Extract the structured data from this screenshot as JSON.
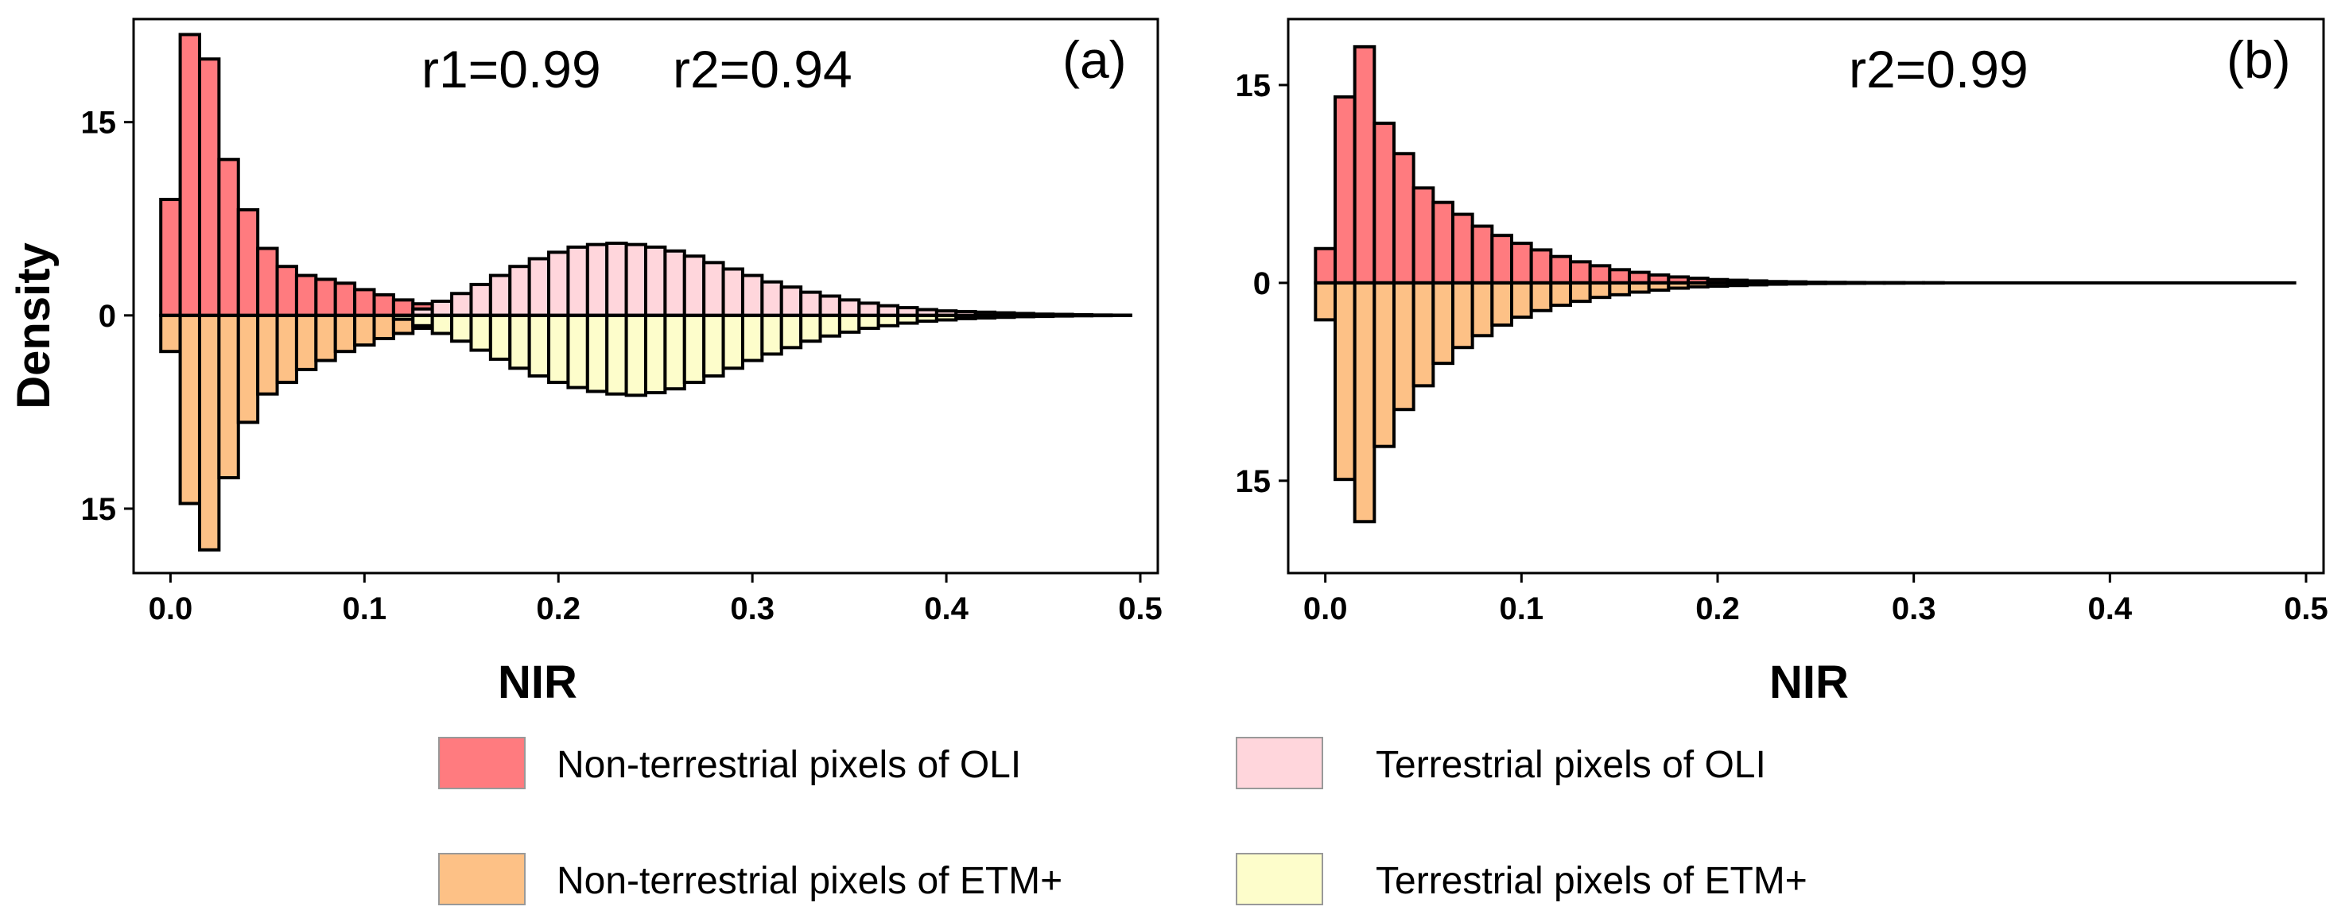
{
  "figure": {
    "ylabel": "Density",
    "legend": [
      {
        "label": "Non-terrestrial pixels of OLI",
        "color": "#ff7b7f"
      },
      {
        "label": "Terrestrial pixels of OLI",
        "color": "#ffd6dc"
      },
      {
        "label": "Non-terrestrial pixels of ETM+",
        "color": "#fdc186"
      },
      {
        "label": "Terrestrial pixels of ETM+",
        "color": "#fdfdcb"
      }
    ]
  },
  "chart_data": [
    {
      "type": "mirrored-histogram",
      "panel_label": "(a)",
      "annotation_r1": "r1=0.99",
      "annotation_r2": "r2=0.94",
      "xlabel": "NIR",
      "xlim": [
        -0.01,
        0.5
      ],
      "ylim": [
        -20,
        23
      ],
      "x_ticks": [
        "0.0",
        "0.1",
        "0.2",
        "0.3",
        "0.4",
        "0.5"
      ],
      "y_ticks": [
        {
          "value": 15,
          "label": "15"
        },
        {
          "value": 0,
          "label": "0"
        },
        {
          "value": -15,
          "label": "15"
        }
      ],
      "bin_width": 0.01,
      "bin_start": -0.005,
      "series": [
        {
          "name": "Non-terrestrial pixels of OLI",
          "color": "#ff7b7f",
          "direction": "up",
          "values": [
            9,
            21.8,
            19.9,
            12.1,
            8.2,
            5.2,
            3.8,
            3.1,
            2.8,
            2.5,
            2.0,
            1.6,
            1.2,
            0.9,
            0.7,
            0.5,
            0.4,
            0.3,
            0.25,
            0.2,
            0.2,
            0.15,
            0.1,
            0.1,
            0.1,
            0.05,
            0.05,
            0.05,
            0,
            0,
            0,
            0,
            0,
            0,
            0,
            0,
            0,
            0,
            0,
            0,
            0,
            0,
            0,
            0,
            0,
            0,
            0,
            0,
            0,
            0
          ]
        },
        {
          "name": "Terrestrial pixels of OLI",
          "color": "#ffd6dc",
          "direction": "up",
          "values": [
            0,
            0,
            0,
            0,
            0,
            0,
            0,
            0,
            0,
            0,
            0,
            0,
            0,
            0.5,
            1.1,
            1.7,
            2.4,
            3.1,
            3.8,
            4.4,
            4.9,
            5.3,
            5.5,
            5.6,
            5.5,
            5.3,
            5.0,
            4.6,
            4.1,
            3.6,
            3.1,
            2.6,
            2.2,
            1.8,
            1.5,
            1.2,
            0.95,
            0.75,
            0.6,
            0.45,
            0.35,
            0.3,
            0.25,
            0.2,
            0.15,
            0.1,
            0.08,
            0.05,
            0.03,
            0.02
          ]
        },
        {
          "name": "Non-terrestrial pixels of ETM+",
          "color": "#fdc186",
          "direction": "down",
          "values": [
            2.8,
            14.6,
            18.2,
            12.6,
            8.3,
            6.1,
            5.2,
            4.2,
            3.5,
            2.8,
            2.3,
            1.8,
            1.4,
            1.0,
            0.8,
            0.6,
            0.5,
            0.4,
            0.3,
            0.25,
            0.2,
            0.15,
            0.1,
            0.1,
            0.1,
            0.05,
            0.05,
            0,
            0,
            0,
            0,
            0,
            0,
            0,
            0,
            0,
            0,
            0,
            0,
            0,
            0,
            0,
            0,
            0,
            0,
            0,
            0,
            0,
            0,
            0
          ]
        },
        {
          "name": "Terrestrial pixels of ETM+",
          "color": "#fdfdcb",
          "direction": "down",
          "values": [
            0,
            0,
            0,
            0,
            0,
            0,
            0,
            0,
            0,
            0,
            0,
            0,
            0.3,
            0.8,
            1.4,
            2.0,
            2.7,
            3.4,
            4.1,
            4.7,
            5.2,
            5.6,
            5.9,
            6.1,
            6.2,
            6.0,
            5.7,
            5.2,
            4.7,
            4.1,
            3.5,
            3.0,
            2.5,
            2.0,
            1.6,
            1.3,
            1.0,
            0.8,
            0.6,
            0.45,
            0.35,
            0.25,
            0.2,
            0.15,
            0.1,
            0.08,
            0.05,
            0.03,
            0.02,
            0.01
          ]
        }
      ]
    },
    {
      "type": "mirrored-histogram",
      "panel_label": "(b)",
      "annotation_r2": "r2=0.99",
      "xlabel": "NIR",
      "xlim": [
        -0.01,
        0.5
      ],
      "ylim": [
        -22,
        20
      ],
      "x_ticks": [
        "0.0",
        "0.1",
        "0.2",
        "0.3",
        "0.4",
        "0.5"
      ],
      "y_ticks": [
        {
          "value": 15,
          "label": "15"
        },
        {
          "value": 0,
          "label": "0"
        },
        {
          "value": -15,
          "label": "15"
        }
      ],
      "bin_width": 0.01,
      "bin_start": -0.005,
      "series": [
        {
          "name": "Non-terrestrial pixels of OLI",
          "color": "#ff7b7f",
          "direction": "up",
          "values": [
            2.6,
            14.1,
            17.9,
            12.1,
            9.8,
            7.2,
            6.1,
            5.2,
            4.3,
            3.6,
            3.0,
            2.5,
            2.0,
            1.6,
            1.3,
            1.0,
            0.8,
            0.6,
            0.45,
            0.35,
            0.25,
            0.2,
            0.15,
            0.1,
            0.08,
            0.05,
            0.04,
            0.03,
            0.02,
            0.02,
            0.01,
            0.01,
            0,
            0,
            0,
            0,
            0,
            0,
            0,
            0,
            0,
            0,
            0,
            0,
            0,
            0,
            0,
            0,
            0,
            0
          ]
        },
        {
          "name": "Non-terrestrial pixels of ETM+",
          "color": "#fdc186",
          "direction": "down",
          "values": [
            2.8,
            14.9,
            18.1,
            12.4,
            9.6,
            7.8,
            6.1,
            4.9,
            4.0,
            3.2,
            2.6,
            2.1,
            1.7,
            1.4,
            1.1,
            0.9,
            0.7,
            0.55,
            0.4,
            0.3,
            0.25,
            0.2,
            0.15,
            0.1,
            0.08,
            0.05,
            0.04,
            0.03,
            0.02,
            0.02,
            0.01,
            0.01,
            0,
            0,
            0,
            0,
            0,
            0,
            0,
            0,
            0,
            0,
            0,
            0,
            0,
            0,
            0,
            0,
            0,
            0
          ]
        }
      ]
    }
  ]
}
